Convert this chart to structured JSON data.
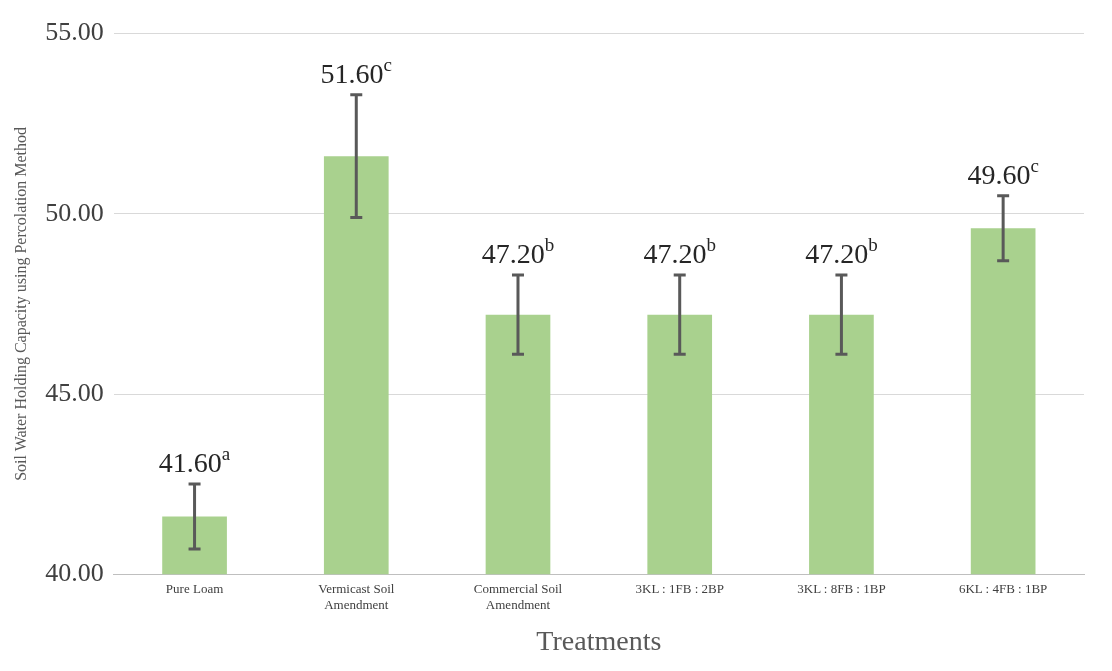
{
  "chart_data": {
    "type": "bar",
    "xlabel": "Treatments",
    "ylabel": "Soil Water Holding Capacity using Percolation Method",
    "categories": [
      "Pure Loam",
      "Vermicast Soil Amendment",
      "Commercial Soil Amendment",
      "3KL : 1FB : 2BP",
      "3KL : 8FB : 1BP",
      "6KL : 4FB : 1BP"
    ],
    "values": [
      41.6,
      51.6,
      47.2,
      47.2,
      47.2,
      49.6
    ],
    "errors": [
      0.9,
      1.7,
      1.1,
      1.1,
      1.1,
      0.9
    ],
    "value_labels": [
      "41.60$^{a}$",
      "51.60$^{c}$",
      "47.20$^{b}$",
      "47.20$^{b}$",
      "47.20$^{b}$",
      "49.60$^{c}$"
    ],
    "color": "#a9d18e",
    "ylim": [
      40,
      55
    ],
    "yticks": [
      {
        "value": 40,
        "label": "40.00"
      },
      {
        "value": 45,
        "label": "45.00"
      },
      {
        "value": 50,
        "label": "50.00"
      },
      {
        "value": 55,
        "label": "55.00"
      }
    ],
    "grid": "y",
    "legend": false
  }
}
